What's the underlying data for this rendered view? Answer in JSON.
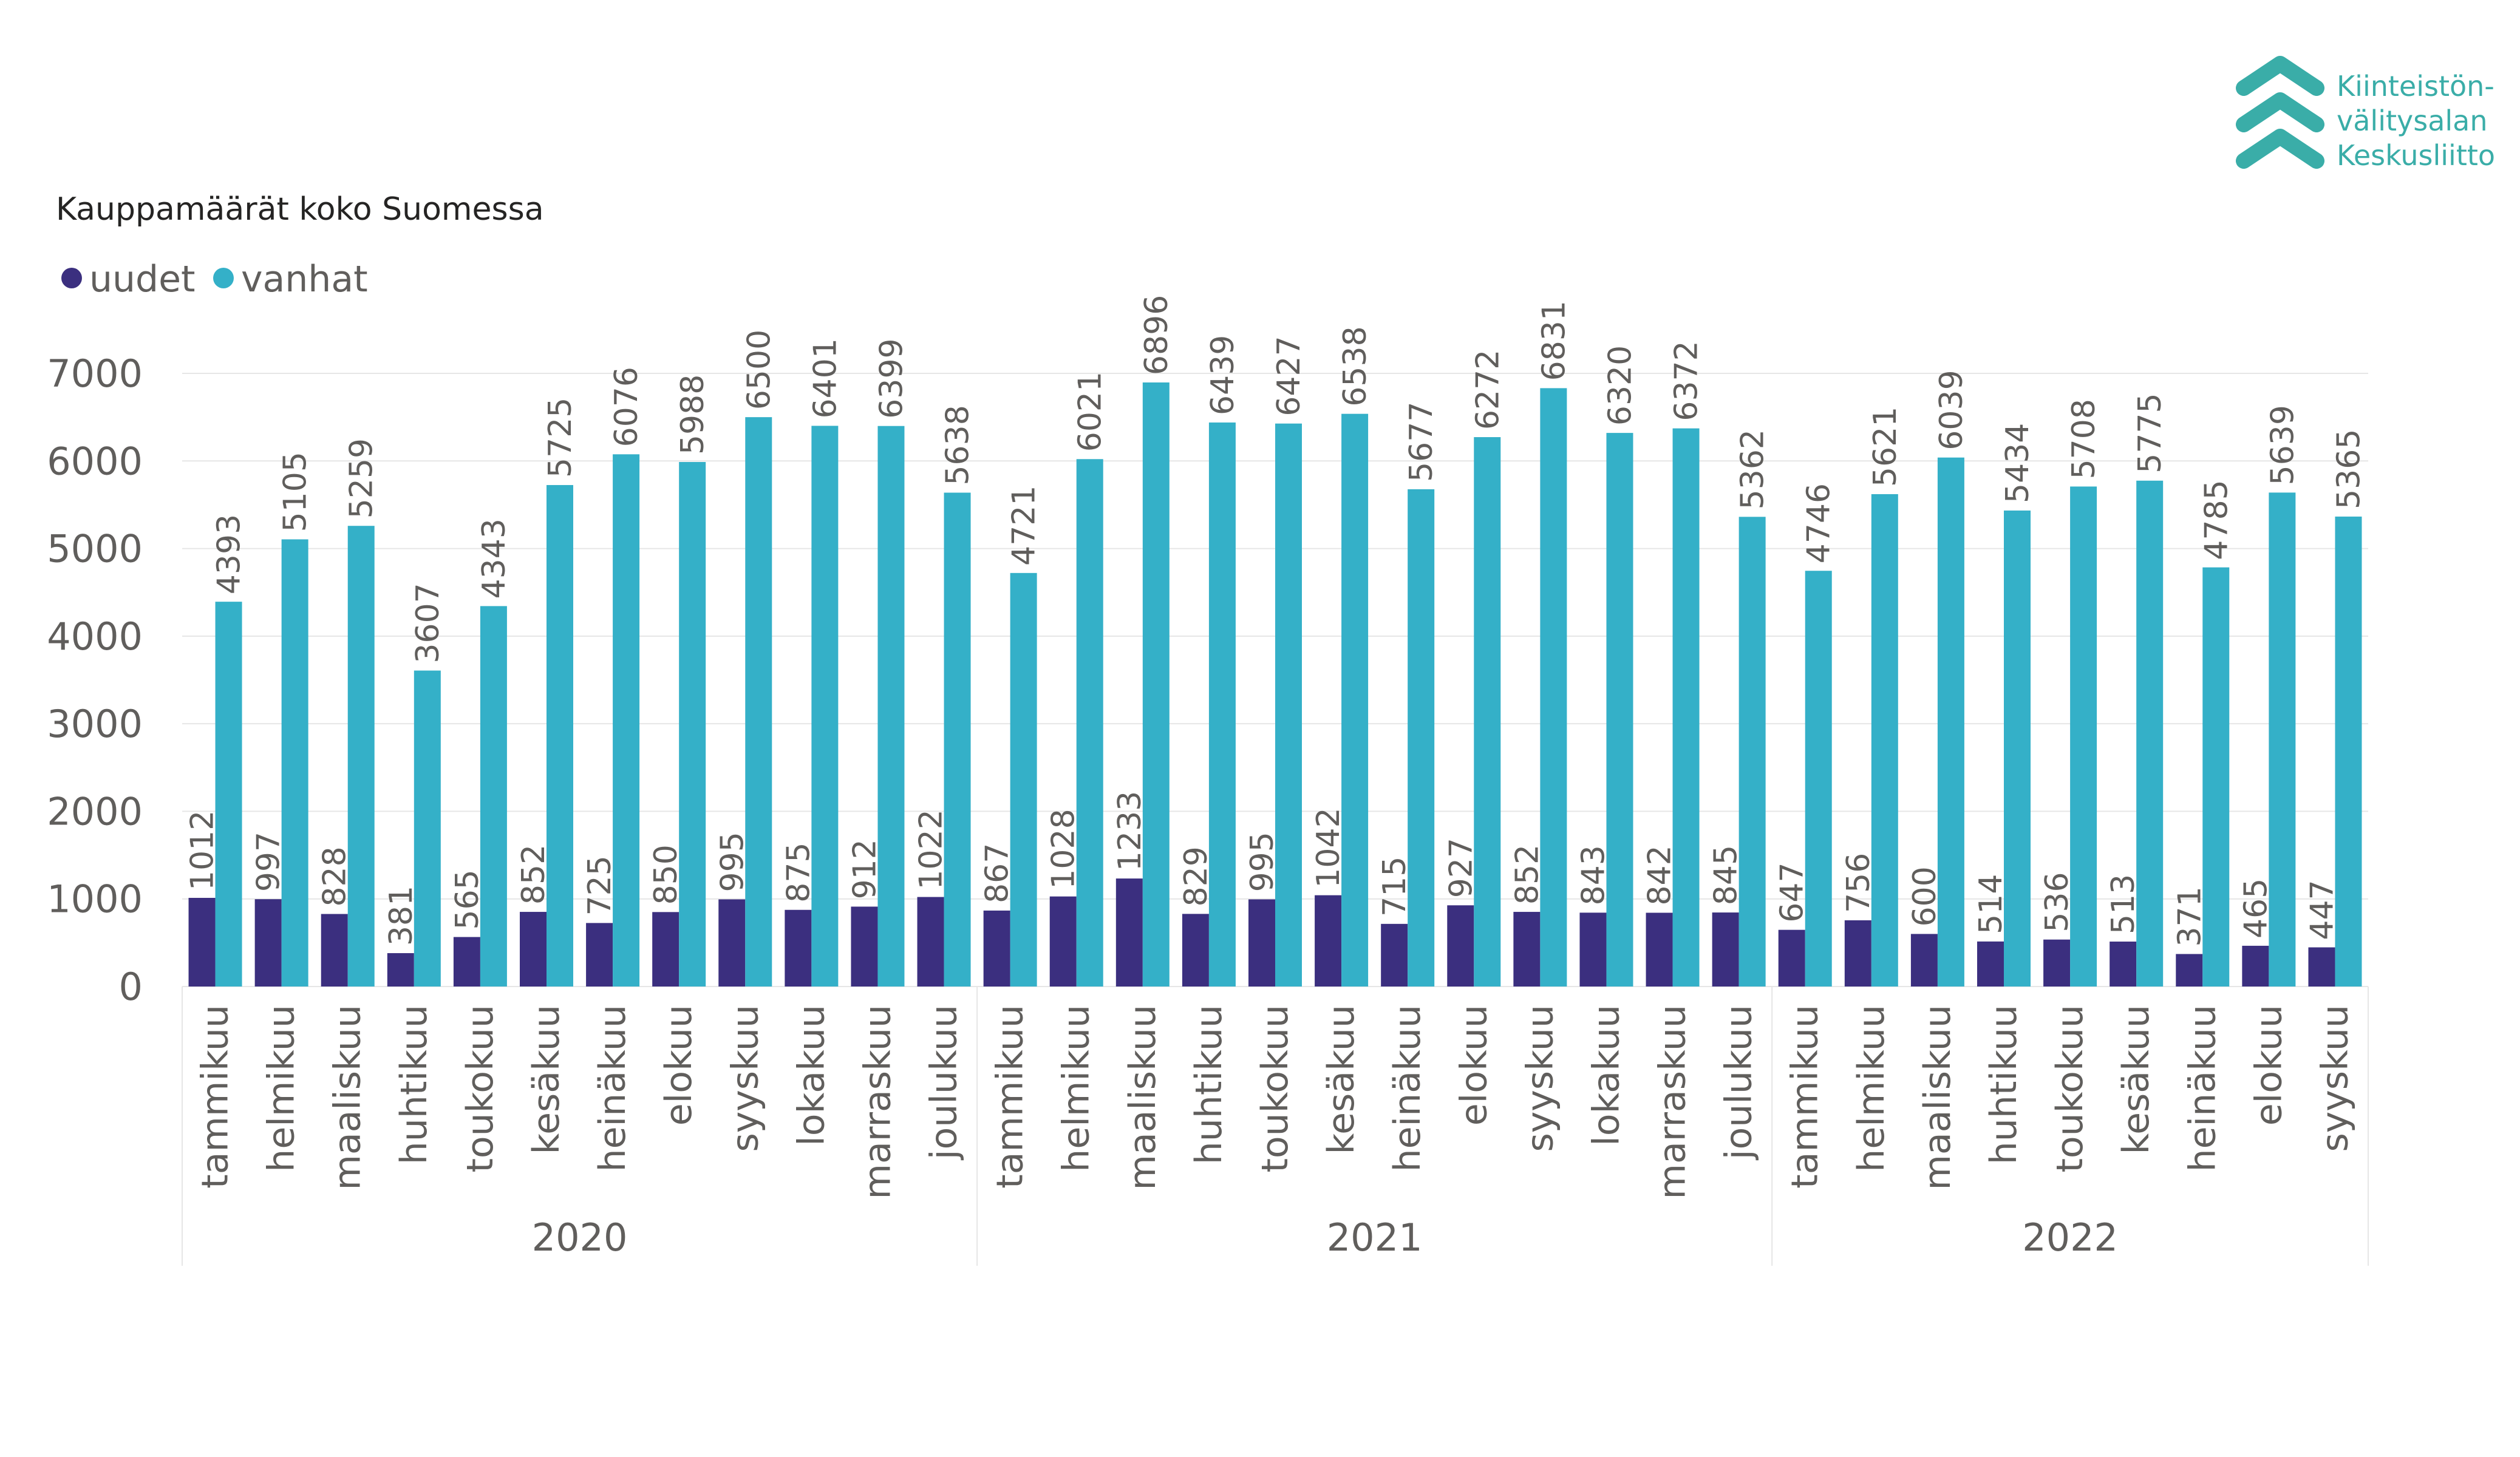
{
  "logo": {
    "lines": [
      "Kiinteistön-",
      "välitysalan",
      "Keskusliitto"
    ],
    "color": "#3aada8"
  },
  "colors": {
    "uudet": "#3b2f7f",
    "vanhat": "#34b0c8",
    "grid": "#e6e6e6",
    "text": "#605e5c"
  },
  "chart_data": {
    "type": "bar",
    "title": "Kauppamäärät koko Suomessa",
    "legend_position": "top-left",
    "ylim": [
      0,
      7000
    ],
    "yticks": [
      0,
      1000,
      2000,
      3000,
      4000,
      5000,
      6000,
      7000
    ],
    "grid": true,
    "groups": [
      {
        "label": "2020",
        "categories": [
          "tammikuu",
          "helmikuu",
          "maaliskuu",
          "huhtikuu",
          "toukokuu",
          "kesäkuu",
          "heinäkuu",
          "elokuu",
          "syyskuu",
          "lokakuu",
          "marraskuu",
          "joulukuu"
        ]
      },
      {
        "label": "2021",
        "categories": [
          "tammikuu",
          "helmikuu",
          "maaliskuu",
          "huhtikuu",
          "toukokuu",
          "kesäkuu",
          "heinäkuu",
          "elokuu",
          "syyskuu",
          "lokakuu",
          "marraskuu",
          "joulukuu"
        ]
      },
      {
        "label": "2022",
        "categories": [
          "tammikuu",
          "helmikuu",
          "maaliskuu",
          "huhtikuu",
          "toukokuu",
          "kesäkuu",
          "heinäkuu",
          "elokuu",
          "syyskuu"
        ]
      }
    ],
    "series": [
      {
        "name": "uudet",
        "color": "#3b2f7f",
        "values": [
          1012,
          997,
          828,
          381,
          565,
          852,
          725,
          850,
          995,
          875,
          912,
          1022,
          867,
          1028,
          1233,
          829,
          995,
          1042,
          715,
          927,
          852,
          843,
          842,
          845,
          647,
          756,
          600,
          514,
          536,
          513,
          371,
          465,
          447
        ]
      },
      {
        "name": "vanhat",
        "color": "#34b0c8",
        "values": [
          4393,
          5105,
          5259,
          3607,
          4343,
          5725,
          6076,
          5988,
          6500,
          6401,
          6399,
          5638,
          4721,
          6021,
          6896,
          6439,
          6427,
          6538,
          5677,
          6272,
          6831,
          6320,
          6372,
          5362,
          4746,
          5621,
          6039,
          5434,
          5708,
          5775,
          4785,
          5639,
          5365
        ]
      }
    ]
  }
}
